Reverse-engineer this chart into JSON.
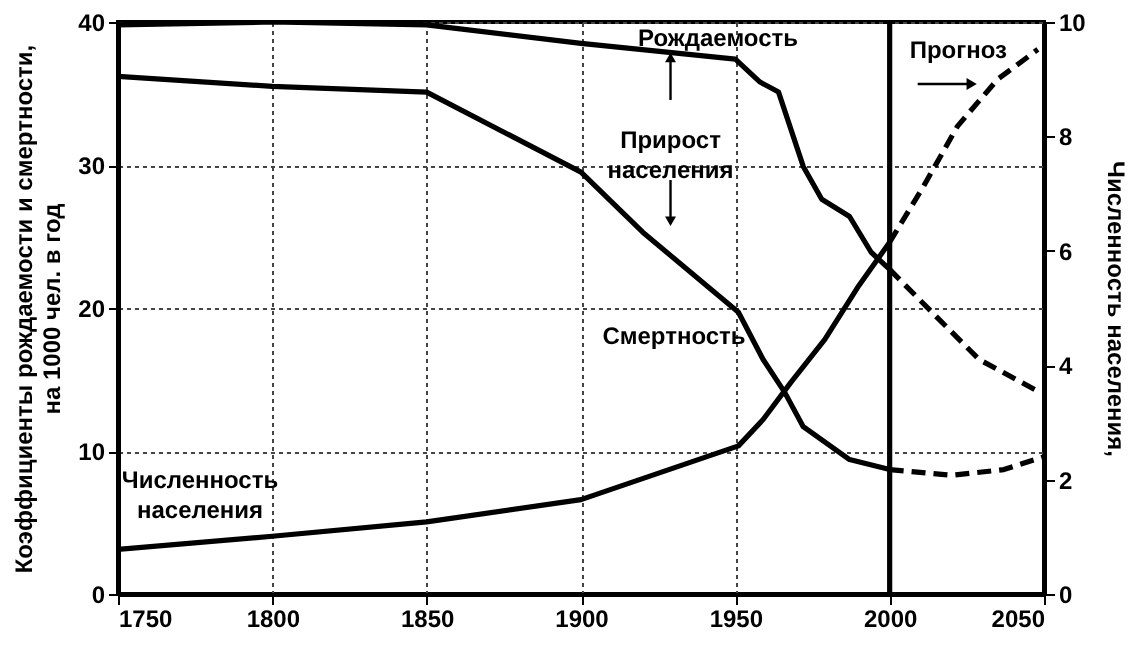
{
  "chart_data": {
    "type": "line",
    "ylabel": "Коэффициенты рождаемости и смертности,\nна 1000 чел. в год",
    "y2label": "Численность населения,",
    "xlim": [
      1750,
      2050
    ],
    "xticks": [
      1750,
      1800,
      1850,
      1900,
      1950,
      2000,
      2050
    ],
    "ylim": [
      0,
      40
    ],
    "yticks": [
      0,
      10,
      20,
      30,
      40
    ],
    "y2lim": [
      0,
      10
    ],
    "y2ticks": [
      0,
      2,
      4,
      6,
      8,
      10
    ],
    "grid": true,
    "series": [
      {
        "color": "#000000",
        "line_style": "solid",
        "x": [
          1750,
          1800,
          1850,
          1900,
          1950,
          1958,
          1964,
          1972,
          1978,
          1987,
          1994,
          2000
        ],
        "values": [
          39.8,
          40,
          39.8,
          38.5,
          37.4,
          35.8,
          35.1,
          29.9,
          27.6,
          26.4,
          23.9,
          22.7
        ]
      },
      {
        "color": "#000000",
        "line_style": "dashed",
        "x": [
          2000,
          2016,
          2029,
          2047
        ],
        "values": [
          22.7,
          19.2,
          16.4,
          14.3
        ]
      },
      {
        "color": "#000000",
        "line_style": "solid",
        "x": [
          1750,
          1800,
          1850,
          1900,
          1920,
          1951,
          1959,
          1966,
          1972,
          1987,
          2000
        ],
        "values": [
          36.2,
          35.5,
          35.1,
          29.5,
          25.3,
          19.7,
          16.4,
          14.1,
          11.7,
          9.4,
          8.7
        ]
      },
      {
        "color": "#000000",
        "line_style": "dashed",
        "x": [
          2000,
          2020,
          2037,
          2050
        ],
        "values": [
          8.7,
          8.3,
          8.7,
          9.6
        ]
      },
      {
        "color": "#000000",
        "line_style": "solid",
        "axis": "y2",
        "x": [
          1750,
          1800,
          1850,
          1900,
          1951,
          1959,
          1968,
          1979,
          1990,
          2000
        ],
        "values": [
          0.78,
          1.01,
          1.26,
          1.65,
          2.59,
          3.05,
          3.7,
          4.45,
          5.39,
          6.15
        ]
      },
      {
        "color": "#000000",
        "line_style": "dashed",
        "axis": "y2",
        "x": [
          2000,
          2011,
          2022,
          2035,
          2048
        ],
        "values": [
          6.15,
          7.13,
          8.18,
          9.0,
          9.52
        ]
      }
    ],
    "ref_lines": [
      {
        "axis": "x",
        "value": 2000,
        "label": "Прогноз",
        "color": "#000000",
        "line_style": "solid"
      }
    ],
    "annotations": [
      "Рождаемость",
      {
        "text": "Прирост\nнаселения",
        "x": 1929,
        "y": 38
      },
      "Смертность",
      "Численность\nнаселения"
    ]
  }
}
